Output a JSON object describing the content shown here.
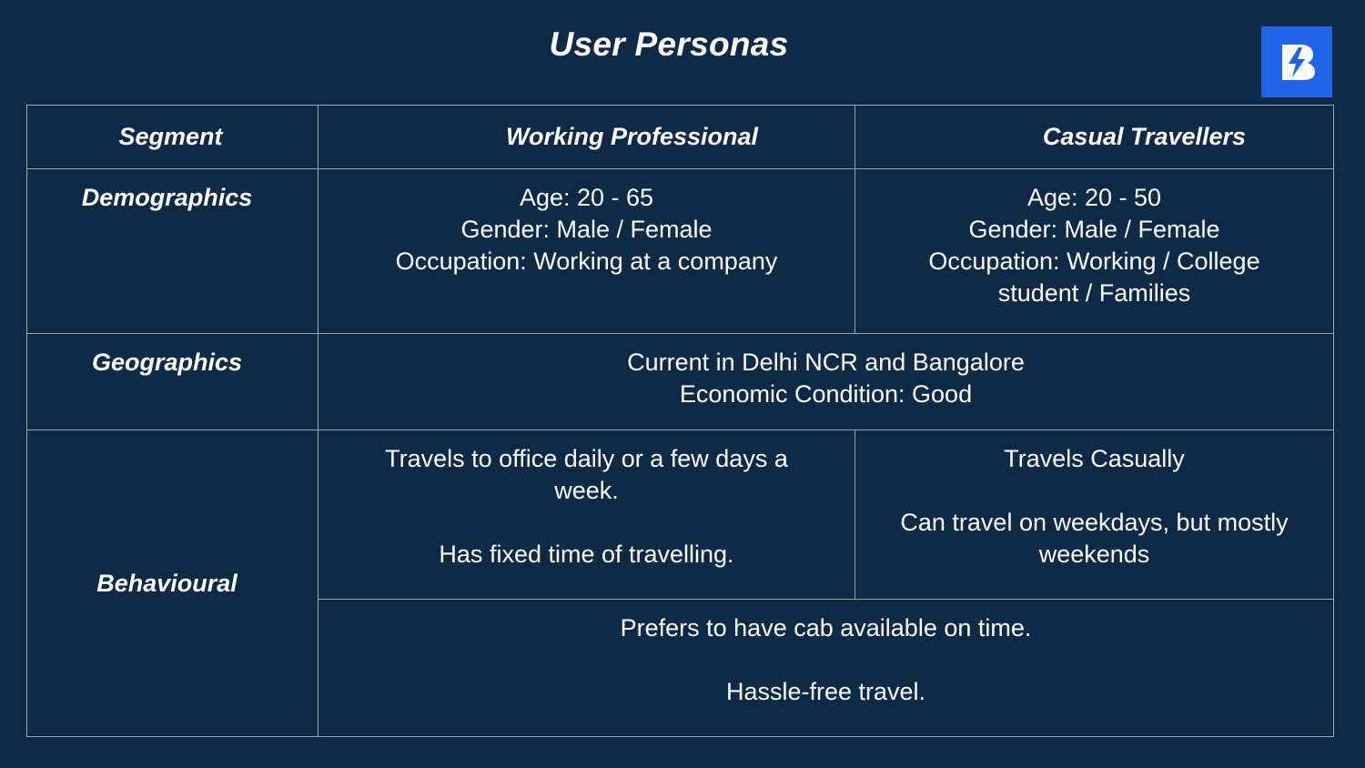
{
  "slide": {
    "title": "User Personas",
    "logo_icon": "bolt-b-logo-icon",
    "accent_color": "#1f63e6",
    "background_color": "#0f2a47"
  },
  "table": {
    "headers": [
      "Segment",
      "Working Professional",
      "Casual Travellers"
    ],
    "demographics": {
      "label": "Demographics",
      "working_professional": [
        "Age: 20 - 65",
        "Gender: Male / Female",
        "Occupation: Working at a company"
      ],
      "casual_travellers": [
        "Age: 20 - 50",
        "Gender: Male / Female",
        "Occupation: Working / College",
        "student / Families"
      ]
    },
    "geographics": {
      "label": "Geographics",
      "shared": [
        "Current in Delhi NCR and Bangalore",
        "Economic Condition: Good"
      ]
    },
    "behavioural": {
      "label": "Behavioural",
      "working_professional": [
        "Travels to office daily or a few days a",
        "week.",
        "Has fixed time of travelling."
      ],
      "casual_travellers": [
        "Travels Casually",
        "Can travel on weekdays, but mostly",
        "weekends"
      ],
      "shared": [
        "Prefers to have cab available on time.",
        "Hassle-free travel."
      ]
    }
  }
}
